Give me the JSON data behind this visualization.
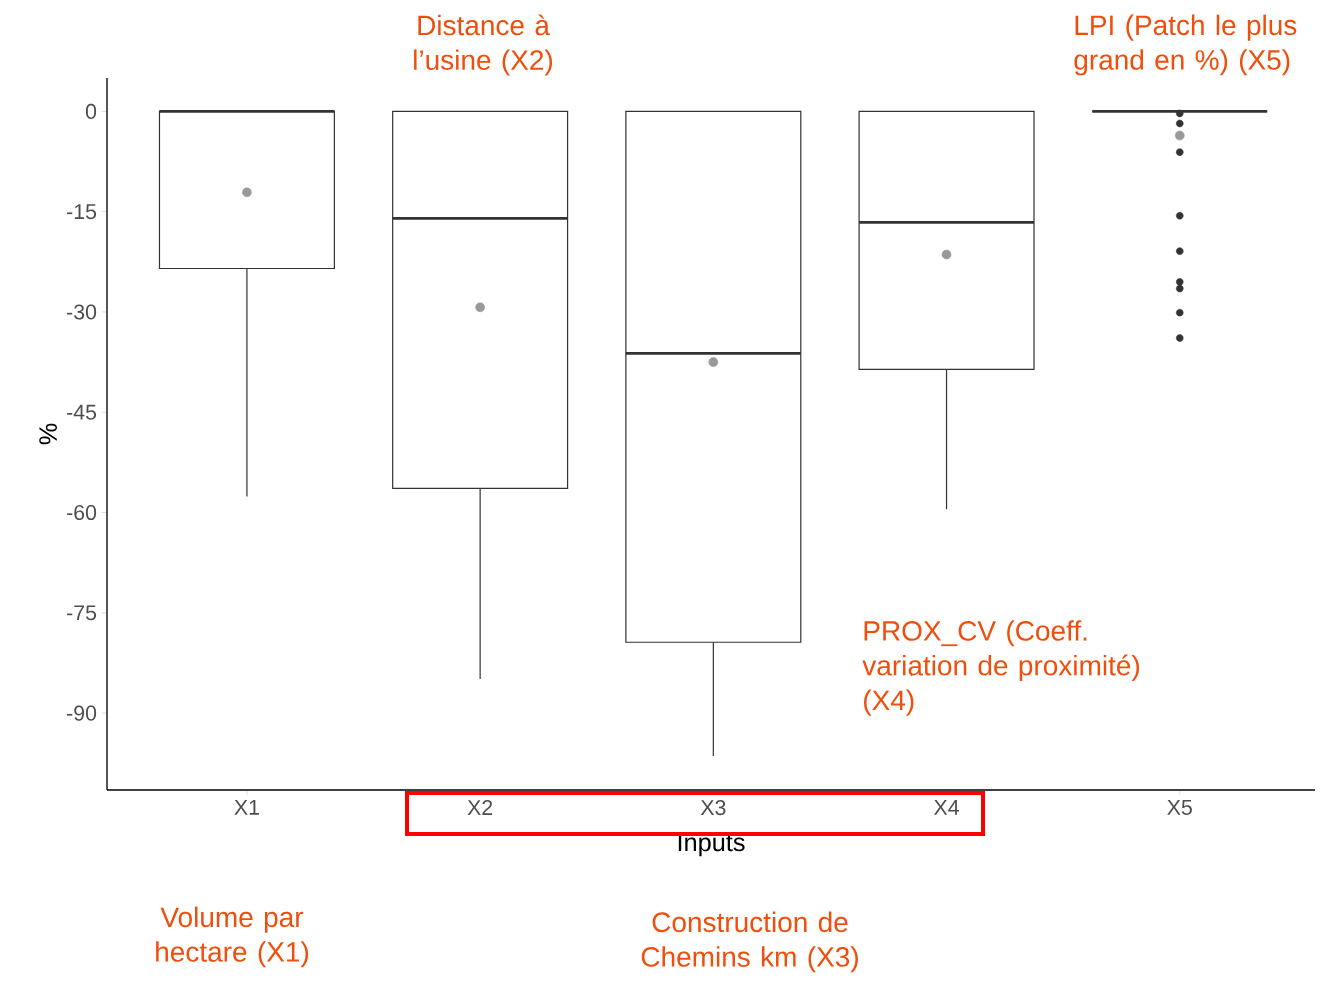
{
  "chart_data": {
    "type": "box",
    "ylabel": "%",
    "xlabel": "Inputs",
    "categories": [
      "X1",
      "X2",
      "X3",
      "X4",
      "X5"
    ],
    "color": "#333333",
    "boxes": [
      {
        "low": -57.6,
        "q1": -23.5,
        "median": 0,
        "q3": 0,
        "high": 0,
        "mean": -12.1
      },
      {
        "low": -84.9,
        "q1": -56.4,
        "median": -16.0,
        "q3": 0,
        "high": 0,
        "mean": -29.3
      },
      {
        "low": -96.4,
        "q1": -79.4,
        "median": -36.2,
        "q3": 0,
        "high": 0,
        "mean": -37.5
      },
      {
        "low": -59.5,
        "q1": -38.6,
        "median": -16.6,
        "q3": 0,
        "high": 0,
        "mean": -21.4
      },
      {
        "low": 0,
        "q1": 0,
        "median": 0,
        "q3": 0,
        "high": 0,
        "mean": -3.6,
        "outliers": [
          -0.3,
          -1.8,
          -6.1,
          -15.6,
          -20.9,
          -25.5,
          -26.5,
          -30.1,
          -33.9
        ]
      }
    ],
    "ylim": [
      -101.5,
      5
    ],
    "yticks": [
      0,
      -15,
      -30,
      -45,
      -60,
      -75,
      -90
    ],
    "annotations": [
      "Volume par hectare (X1)",
      "Distance à l’usine (X2)",
      "Construction de Chemins km (X3)",
      "PROX_CV (Coeff. variation de proximité) (X4)",
      "LPI (Patch le plus grand en %) (X5)"
    ]
  }
}
